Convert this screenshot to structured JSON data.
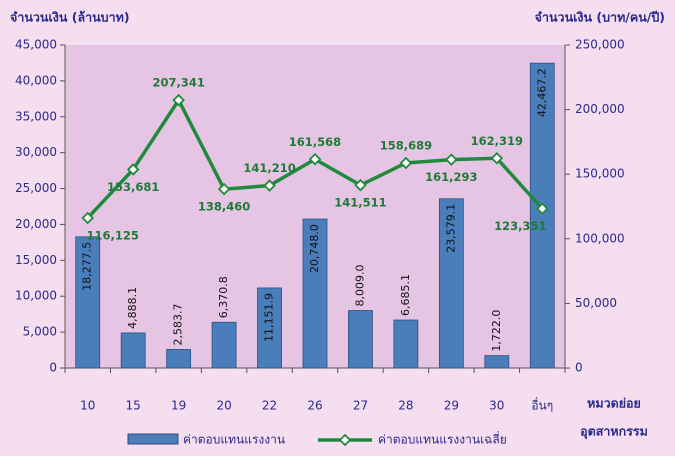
{
  "chart_data": {
    "type": "bar-line",
    "y_label": "จำนวนเงิน (ล้านบาท)",
    "y2_label": "จำนวนเงิน (บาท/คน/ปี)",
    "x_label": [
      "หมวดย่อย",
      "อุตสาหกรรม"
    ],
    "categories": [
      "10",
      "15",
      "19",
      "20",
      "22",
      "26",
      "27",
      "28",
      "29",
      "30",
      "อื่นๆ"
    ],
    "series": [
      {
        "name": "ค่าตอบแทนแรงงาน",
        "type": "bar",
        "color": "#4a7ebb",
        "values": [
          18277.5,
          4888.1,
          2583.7,
          6370.8,
          11151.9,
          20748.0,
          8009.0,
          6685.1,
          23579.1,
          1722.0,
          42467.2
        ],
        "value_labels": [
          "18,277.5",
          "4,888.1",
          "2,583.7",
          "6,370.8",
          "11,151.9",
          "20,748.0",
          "8,009.0",
          "6,685.1",
          "23,579.1",
          "1,722.0",
          "42,467.2"
        ]
      },
      {
        "name": "ค่าตอบแทนแรงงานเฉลี่ย",
        "type": "line",
        "axis": "y2",
        "color": "#1f8a3c",
        "values": [
          116125,
          153681,
          207341,
          138460,
          141210,
          161568,
          141511,
          158689,
          161293,
          162319,
          123351
        ],
        "value_labels": [
          "116,125",
          "153,681",
          "207,341",
          "138,460",
          "141,210",
          "161,568",
          "141,511",
          "158,689",
          "161,293",
          "162,319",
          "123,351"
        ]
      }
    ],
    "ylim": [
      0,
      45000
    ],
    "yticks": [
      0,
      {
        "value": 5000,
        "label": "5,000"
      },
      {
        "value": 10000,
        "label": "10,000"
      },
      {
        "value": 15000,
        "label": "15,000"
      },
      {
        "value": 20000,
        "label": "20,000"
      },
      {
        "value": 25000,
        "label": "25,000"
      },
      {
        "value": 30000,
        "label": "30,000"
      },
      {
        "value": 35000,
        "label": "35,000"
      },
      {
        "value": 40000,
        "label": "40,000"
      },
      {
        "value": 45000,
        "label": "45,000"
      }
    ],
    "y2lim": [
      0,
      250000
    ],
    "y2ticks": [
      0,
      {
        "value": 50000,
        "label": "50,000"
      },
      {
        "value": 100000,
        "label": "100,000"
      },
      {
        "value": 150000,
        "label": "150,000"
      },
      {
        "value": 200000,
        "label": "200,000"
      },
      {
        "value": 250000,
        "label": "250,000"
      }
    ],
    "legend": "bottom"
  }
}
